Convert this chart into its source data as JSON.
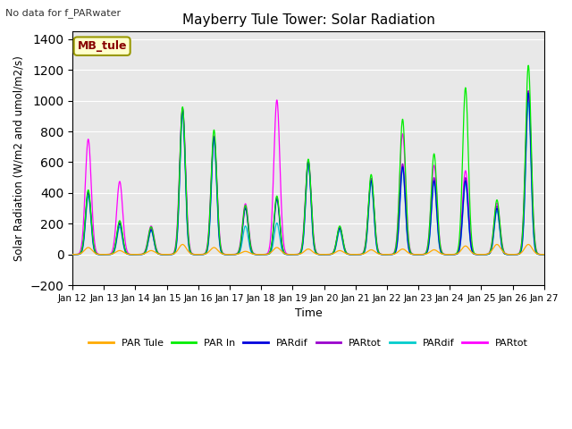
{
  "title": "Mayberry Tule Tower: Solar Radiation",
  "subtitle": "No data for f_PARwater",
  "xlabel": "Time",
  "ylabel": "Solar Radiation (W/m2 and umol/m2/s)",
  "ylim": [
    -200,
    1450
  ],
  "yticks": [
    -200,
    0,
    200,
    400,
    600,
    800,
    1000,
    1200,
    1400
  ],
  "bg_color": "#e8e8e8",
  "legend_label": "MB_tule",
  "legend_bg": "#ffffcc",
  "legend_border": "#999900",
  "legend_text_color": "#880000",
  "series_colors": {
    "PAR Tule": "#ffaa00",
    "PAR In": "#00ee00",
    "PARdif_dark": "#0000dd",
    "PARtot_dark": "#9900cc",
    "PARdif_light": "#00cccc",
    "PARtot_light": "#ff00ff"
  },
  "xtick_labels": [
    "Jan 12",
    "Jan 13",
    "Jan 14",
    "Jan 15",
    "Jan 16",
    "Jan 17",
    "Jan 18",
    "Jan 19",
    "Jan 20",
    "Jan 21",
    "Jan 22",
    "Jan 23",
    "Jan 24",
    "Jan 25",
    "Jan 26",
    "Jan 27"
  ],
  "day_peaks": {
    "Jan12": {
      "par_tule": 45,
      "par_in": 420,
      "pardif_d": 400,
      "partot_d": 410,
      "pardif_l": 380,
      "partot_l": 750
    },
    "Jan13": {
      "par_tule": 25,
      "par_in": 220,
      "pardif_d": 200,
      "partot_d": 210,
      "pardif_l": 180,
      "partot_l": 475
    },
    "Jan14": {
      "par_tule": 25,
      "par_in": 180,
      "pardif_d": 160,
      "partot_d": 170,
      "pardif_l": 155,
      "partot_l": 185
    },
    "Jan15": {
      "par_tule": 65,
      "par_in": 960,
      "pardif_d": 940,
      "partot_d": 950,
      "pardif_l": 920,
      "partot_l": 950
    },
    "Jan16": {
      "par_tule": 45,
      "par_in": 810,
      "pardif_d": 760,
      "partot_d": 770,
      "pardif_l": 740,
      "partot_l": 760
    },
    "Jan17": {
      "par_tule": 20,
      "par_in": 320,
      "pardif_d": 300,
      "partot_d": 310,
      "pardif_l": 185,
      "partot_l": 330
    },
    "Jan18": {
      "par_tule": 45,
      "par_in": 380,
      "pardif_d": 360,
      "partot_d": 370,
      "pardif_l": 205,
      "partot_l": 1005
    },
    "Jan19": {
      "par_tule": 35,
      "par_in": 620,
      "pardif_d": 600,
      "partot_d": 610,
      "pardif_l": 590,
      "partot_l": 605
    },
    "Jan20": {
      "par_tule": 25,
      "par_in": 185,
      "pardif_d": 170,
      "partot_d": 178,
      "pardif_l": 155,
      "partot_l": 170
    },
    "Jan21": {
      "par_tule": 30,
      "par_in": 520,
      "pardif_d": 480,
      "partot_d": 495,
      "pardif_l": 465,
      "partot_l": 480
    },
    "Jan22": {
      "par_tule": 35,
      "par_in": 880,
      "pardif_d": 570,
      "partot_d": 590,
      "pardif_l": 555,
      "partot_l": 785
    },
    "Jan23": {
      "par_tule": 30,
      "par_in": 655,
      "pardif_d": 480,
      "partot_d": 500,
      "pardif_l": 465,
      "partot_l": 580
    },
    "Jan24": {
      "par_tule": 55,
      "par_in": 1085,
      "pardif_d": 480,
      "partot_d": 500,
      "pardif_l": 465,
      "partot_l": 545
    },
    "Jan25": {
      "par_tule": 65,
      "par_in": 355,
      "pardif_d": 300,
      "partot_d": 315,
      "pardif_l": 285,
      "partot_l": 335
    },
    "Jan26": {
      "par_tule": 65,
      "par_in": 1230,
      "pardif_d": 1050,
      "partot_d": 1065,
      "pardif_l": 990,
      "partot_l": 1060
    }
  }
}
